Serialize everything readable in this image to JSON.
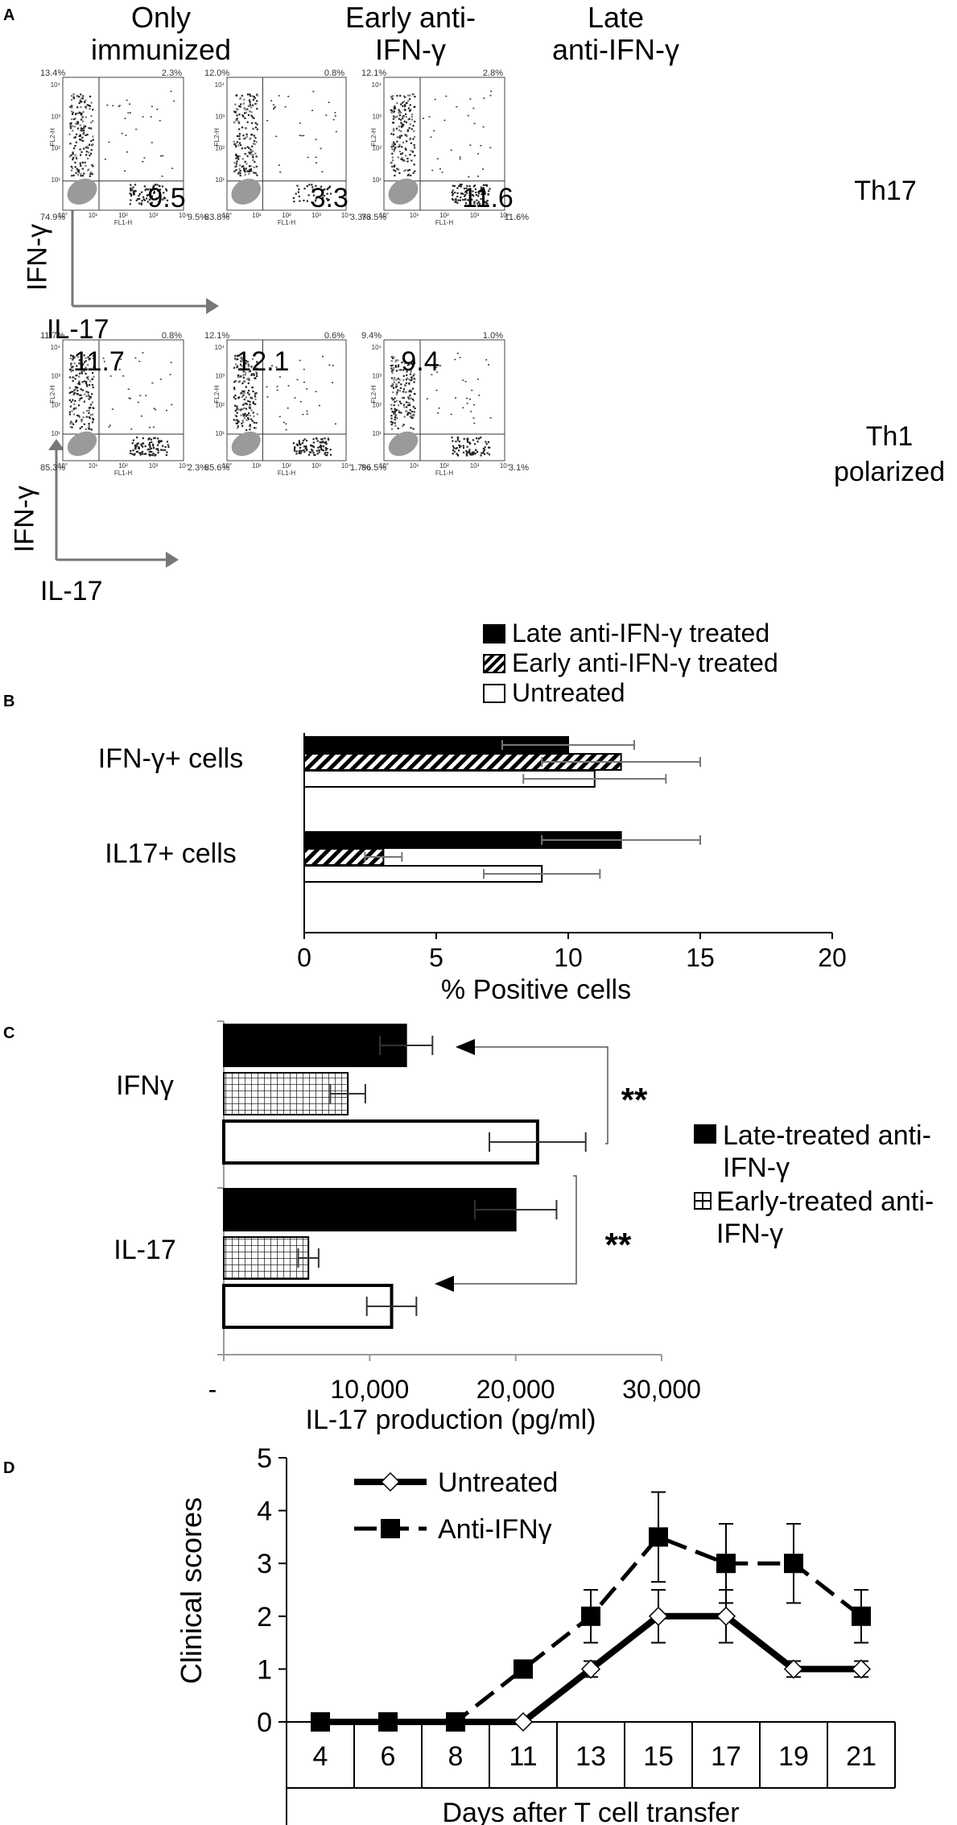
{
  "panelA": {
    "label": "A",
    "columns": [
      {
        "line1": "Only",
        "line2": "immunized"
      },
      {
        "line1": "Early anti-",
        "line2": "IFN-γ"
      },
      {
        "line1": "Late",
        "line2": "anti-IFN-γ"
      }
    ],
    "rows": [
      {
        "line1": "Th17",
        "line2": ""
      },
      {
        "line1": "Th1",
        "line2": "polarized"
      }
    ],
    "y_axis_label": "IFN-γ",
    "x_axis_label": "IL-17",
    "plots": [
      [
        {
          "big": "9.5",
          "ul": "13.4%",
          "ur": "2.3%",
          "ll": "74.9%",
          "lr": "9.5%"
        },
        {
          "big": "3.3",
          "ul": "12.0%",
          "ur": "0.8%",
          "ll": "83.8%",
          "lr": "3.3%"
        },
        {
          "big": "11.6",
          "ul": "12.1%",
          "ur": "2.8%",
          "ll": "73.5%",
          "lr": "11.6%"
        }
      ],
      [
        {
          "big": "11.7",
          "ul": "11.7%",
          "ur": "0.8%",
          "ll": "85.3%",
          "lr": "2.3%"
        },
        {
          "big": "12.1",
          "ul": "12.1%",
          "ur": "0.6%",
          "ll": "85.6%",
          "lr": "1.7%"
        },
        {
          "big": "9.4",
          "ul": "9.4%",
          "ur": "1.0%",
          "ll": "86.5%",
          "lr": "3.1%"
        }
      ]
    ],
    "fl1": "FL1-H",
    "fl2": "FL2-H"
  },
  "chart_data": [
    {
      "panel": "B",
      "type": "bar",
      "orientation": "horizontal",
      "categories": [
        "IFN-γ+ cells",
        "IL17+ cells"
      ],
      "series": [
        {
          "name": "Late anti-IFN-γ treated",
          "values": [
            10,
            12
          ],
          "errors": [
            2.5,
            3
          ],
          "fill": "solid"
        },
        {
          "name": "Early anti-IFN-γ treated",
          "values": [
            12,
            3
          ],
          "errors": [
            3,
            0.7
          ],
          "fill": "hatch"
        },
        {
          "name": "Untreated",
          "values": [
            11,
            9
          ],
          "errors": [
            2.7,
            2.2
          ],
          "fill": "white"
        }
      ],
      "xlabel": "% Positive cells",
      "xlim": [
        0,
        20
      ],
      "xticks": [
        "0",
        "5",
        "10",
        "15",
        "20"
      ]
    },
    {
      "panel": "C",
      "type": "bar",
      "orientation": "horizontal",
      "categories": [
        "IFNγ",
        "IL-17"
      ],
      "series": [
        {
          "name": "Late-treated anti-IFN-γ",
          "values": [
            12500,
            20000
          ],
          "errors": [
            1800,
            2800
          ],
          "fill": "solid"
        },
        {
          "name": "Early-treated anti-IFN-γ",
          "values": [
            8500,
            5800
          ],
          "errors": [
            1200,
            700
          ],
          "fill": "grid"
        },
        {
          "name": "",
          "values": [
            21500,
            11500
          ],
          "errors": [
            3300,
            1700
          ],
          "fill": "white"
        }
      ],
      "xlabel": "IL-17 production (pg/ml)",
      "xlim": [
        0,
        30000
      ],
      "xticks": [
        "-",
        "10,000",
        "20,000",
        "30,000"
      ],
      "significance": [
        "**",
        "**"
      ]
    },
    {
      "panel": "D",
      "type": "line",
      "categories": [
        "4",
        "6",
        "8",
        "11",
        "13",
        "15",
        "17",
        "19",
        "21"
      ],
      "series": [
        {
          "name": "Untreated",
          "values": [
            0,
            0,
            0,
            0,
            1,
            2,
            2,
            1,
            1
          ],
          "errors": [
            0,
            0,
            0,
            0,
            0.15,
            0.5,
            0.5,
            0.15,
            0.15
          ],
          "style": "solid",
          "marker": "diamond"
        },
        {
          "name": "Anti-IFNγ",
          "values": [
            0,
            0,
            0,
            1,
            2,
            3.5,
            3,
            3,
            2
          ],
          "errors": [
            0,
            0,
            0,
            0.15,
            0.5,
            0.85,
            0.75,
            0.75,
            0.5
          ],
          "style": "dashed",
          "marker": "square"
        }
      ],
      "ylabel": "Clinical scores",
      "xlabel": "Days after T cell transfer",
      "ylim": [
        0,
        5
      ],
      "yticks": [
        "0",
        "1",
        "2",
        "3",
        "4",
        "5"
      ]
    }
  ],
  "panel_labels": {
    "B": "B",
    "C": "C",
    "D": "D"
  }
}
